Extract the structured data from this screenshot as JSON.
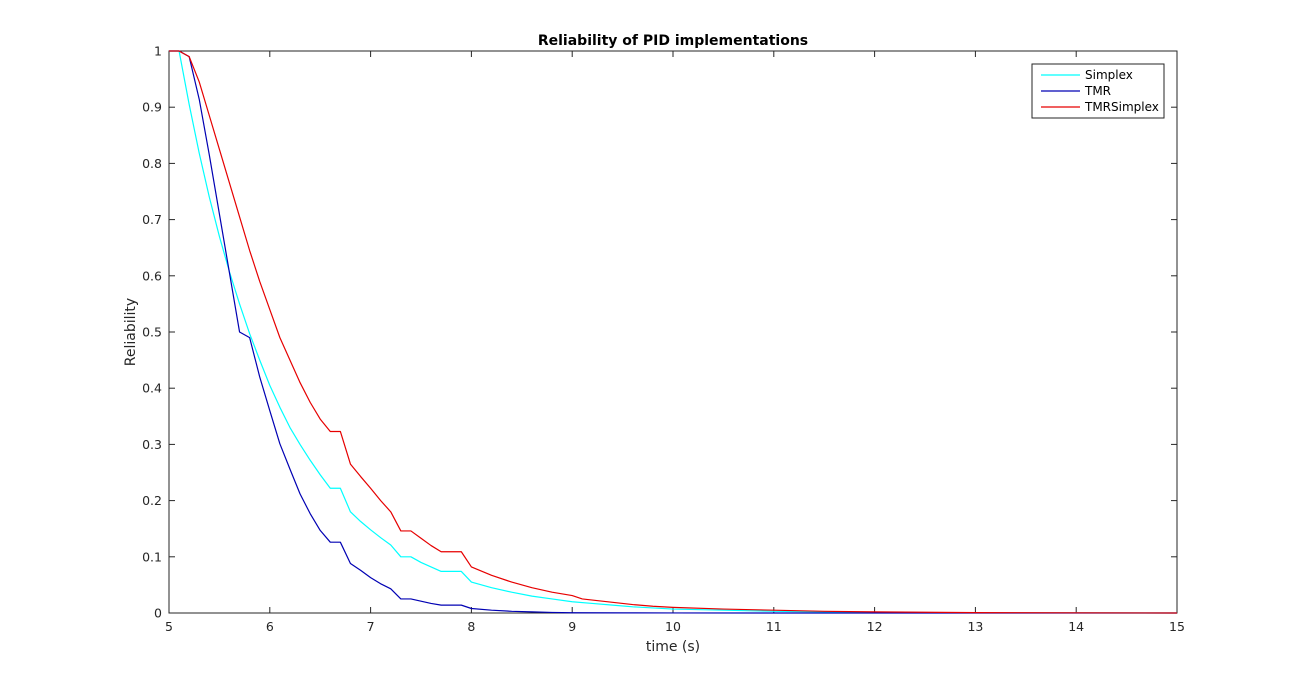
{
  "chart_data": {
    "type": "line",
    "title": "Reliability of PID implementations",
    "xlabel": "time (s)",
    "ylabel": "Reliability",
    "xlim": [
      5,
      15
    ],
    "ylim": [
      0,
      1
    ],
    "xticks": [
      5,
      6,
      7,
      8,
      9,
      10,
      11,
      12,
      13,
      14,
      15
    ],
    "yticks": [
      0,
      0.1,
      0.2,
      0.3,
      0.4,
      0.5,
      0.6,
      0.7,
      0.8,
      0.9,
      1
    ],
    "ytick_labels": [
      "0",
      "0.1",
      "0.2",
      "0.3",
      "0.4",
      "0.5",
      "0.6",
      "0.7",
      "0.8",
      "0.9",
      "1"
    ],
    "grid": false,
    "legend_position": "top-right",
    "series": [
      {
        "name": "Simplex",
        "color": "#00ffff",
        "x": [
          5,
          5.1,
          5.2,
          5.3,
          5.4,
          5.5,
          5.6,
          5.7,
          5.8,
          5.9,
          6,
          6.1,
          6.2,
          6.3,
          6.4,
          6.5,
          6.6,
          6.7,
          6.8,
          6.9,
          7,
          7.1,
          7.2,
          7.3,
          7.4,
          7.5,
          7.6,
          7.7,
          7.8,
          7.9,
          8,
          8.2,
          8.4,
          8.6,
          8.8,
          9,
          9.2,
          9.4,
          9.6,
          9.8,
          10,
          10.5,
          11,
          11.5,
          12,
          13,
          14,
          15
        ],
        "y": [
          1,
          1,
          0.905,
          0.818,
          0.74,
          0.67,
          0.607,
          0.55,
          0.497,
          0.45,
          0.405,
          0.366,
          0.33,
          0.3,
          0.272,
          0.246,
          0.222,
          0.222,
          0.18,
          0.163,
          0.148,
          0.134,
          0.121,
          0.1,
          0.1,
          0.09,
          0.082,
          0.074,
          0.074,
          0.074,
          0.055,
          0.045,
          0.037,
          0.03,
          0.025,
          0.02,
          0.017,
          0.014,
          0.011,
          0.009,
          0.007,
          0.005,
          0.003,
          0.002,
          0.001,
          0.0005,
          0.0002,
          0
        ]
      },
      {
        "name": "TMR",
        "color": "#0000b3",
        "x": [
          5,
          5.1,
          5.2,
          5.3,
          5.4,
          5.5,
          5.6,
          5.7,
          5.8,
          5.9,
          6,
          6.1,
          6.2,
          6.3,
          6.4,
          6.5,
          6.6,
          6.7,
          6.8,
          6.9,
          7,
          7.1,
          7.2,
          7.3,
          7.4,
          7.5,
          7.6,
          7.7,
          7.8,
          7.9,
          8,
          8.2,
          8.4,
          8.6,
          8.8,
          9,
          9.5,
          10,
          11,
          12,
          13,
          14,
          15
        ],
        "y": [
          1,
          1,
          0.99,
          0.914,
          0.815,
          0.71,
          0.605,
          0.5,
          0.49,
          0.42,
          0.36,
          0.301,
          0.256,
          0.212,
          0.177,
          0.147,
          0.126,
          0.126,
          0.088,
          0.076,
          0.063,
          0.052,
          0.043,
          0.025,
          0.025,
          0.021,
          0.017,
          0.014,
          0.014,
          0.014,
          0.008,
          0.005,
          0.003,
          0.002,
          0.001,
          0.0005,
          0.0002,
          0.0001,
          0,
          0,
          0,
          0,
          0
        ]
      },
      {
        "name": "TMRSimplex",
        "color": "#e60000",
        "x": [
          5,
          5.1,
          5.2,
          5.3,
          5.4,
          5.5,
          5.6,
          5.7,
          5.8,
          5.9,
          6,
          6.1,
          6.2,
          6.3,
          6.4,
          6.5,
          6.6,
          6.7,
          6.8,
          6.9,
          7,
          7.1,
          7.2,
          7.3,
          7.4,
          7.5,
          7.6,
          7.7,
          7.8,
          7.9,
          8,
          8.2,
          8.4,
          8.6,
          8.8,
          9,
          9.1,
          9.2,
          9.4,
          9.6,
          9.8,
          10,
          10.5,
          11,
          11.5,
          12,
          13,
          14,
          15
        ],
        "y": [
          1,
          1,
          0.99,
          0.945,
          0.885,
          0.825,
          0.765,
          0.705,
          0.645,
          0.59,
          0.54,
          0.49,
          0.45,
          0.41,
          0.375,
          0.345,
          0.323,
          0.323,
          0.265,
          0.243,
          0.222,
          0.2,
          0.18,
          0.146,
          0.146,
          0.133,
          0.12,
          0.109,
          0.109,
          0.109,
          0.082,
          0.067,
          0.055,
          0.045,
          0.037,
          0.031,
          0.025,
          0.023,
          0.019,
          0.015,
          0.012,
          0.01,
          0.007,
          0.005,
          0.003,
          0.002,
          0.0007,
          0.0003,
          0
        ]
      }
    ]
  }
}
